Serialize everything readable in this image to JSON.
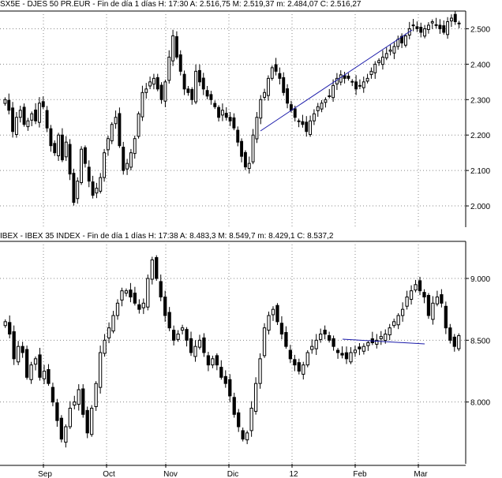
{
  "chart_data": [
    {
      "type": "candlestick",
      "title": "SX5E - DJES 50 PR.EUR - Fin de día 1 días  H: 17:30  A: 2.516,75  M: 2.519,37  m: 2.484,07  C: 2.516,27",
      "y_ticks": [
        "2.500",
        "2.400",
        "2.300",
        "2.200",
        "2.100",
        "2.000"
      ],
      "y_tick_values": [
        2500,
        2400,
        2300,
        2200,
        2100,
        2000
      ],
      "ylim": [
        1940,
        2550
      ],
      "grid": true,
      "trendline": {
        "color": "#1a1aaa",
        "from": [
          "Dic-8",
          2180
        ],
        "to": [
          "Feb-25",
          2515
        ]
      },
      "closes": [
        2300,
        2270,
        2210,
        2250,
        2270,
        2230,
        2240,
        2260,
        2240,
        2290,
        2280,
        2220,
        2170,
        2150,
        2200,
        2130,
        2180,
        2090,
        2010,
        2070,
        2160,
        2120,
        2070,
        2030,
        2050,
        2080,
        2150,
        2190,
        2230,
        2250,
        2170,
        2100,
        2120,
        2150,
        2190,
        2260,
        2320,
        2330,
        2350,
        2360,
        2330,
        2300,
        2350,
        2420,
        2480,
        2420,
        2380,
        2330,
        2320,
        2300,
        2380,
        2350,
        2330,
        2310,
        2300,
        2280,
        2250,
        2270,
        2250,
        2240,
        2220,
        2180,
        2140,
        2110,
        2120,
        2200,
        2250,
        2300,
        2320,
        2360,
        2390,
        2380,
        2360,
        2320,
        2290,
        2270,
        2250,
        2240,
        2230,
        2210,
        2240,
        2260,
        2280,
        2290,
        2300,
        2310,
        2340,
        2360,
        2370,
        2360,
        2360,
        2350,
        2330,
        2340,
        2350,
        2360,
        2380,
        2400,
        2410,
        2420,
        2430,
        2440,
        2450,
        2470,
        2460,
        2480,
        2500,
        2510,
        2500,
        2490,
        2500,
        2510,
        2520,
        2510,
        2500,
        2490,
        2520,
        2530,
        2520,
        2516
      ]
    },
    {
      "type": "candlestick",
      "title": "IBEX - IBEX 35 INDEX - Fin de día 1 días  H: 17:38  A: 8.483,3  M: 8.549,7  m: 8.429,1  C: 8.537,2",
      "y_ticks": [
        "9.000",
        "8.500",
        "8.000"
      ],
      "y_tick_values": [
        9000,
        8500,
        8000
      ],
      "ylim": [
        7500,
        9300
      ],
      "grid": true,
      "trendline": {
        "color": "#1a1aaa",
        "from": [
          "Feb-1",
          8490
        ],
        "to": [
          "Feb-28",
          8450
        ]
      },
      "x_labels": [
        "Sep",
        "Oct",
        "Nov",
        "Dic",
        "12",
        "Feb",
        "Mar"
      ],
      "closes": [
        8650,
        8550,
        8350,
        8450,
        8400,
        8200,
        8300,
        8350,
        8200,
        8250,
        8150,
        8000,
        7850,
        7700,
        7800,
        7950,
        8000,
        8100,
        7900,
        7750,
        7950,
        8150,
        8400,
        8500,
        8600,
        8700,
        8800,
        8900,
        8900,
        8850,
        8800,
        8750,
        8800,
        9000,
        9150,
        9000,
        8850,
        8700,
        8600,
        8500,
        8550,
        8600,
        8500,
        8400,
        8450,
        8500,
        8400,
        8300,
        8350,
        8300,
        8200,
        8150,
        8050,
        7900,
        7800,
        7700,
        7750,
        7950,
        8150,
        8350,
        8600,
        8700,
        8750,
        8650,
        8550,
        8450,
        8350,
        8300,
        8250,
        8300,
        8400,
        8450,
        8500,
        8550,
        8550,
        8500,
        8450,
        8400,
        8380,
        8350,
        8400,
        8420,
        8430,
        8450,
        8480,
        8480,
        8500,
        8530,
        8550,
        8600,
        8650,
        8700,
        8750,
        8850,
        8900,
        8950,
        8900,
        8850,
        8700,
        8800,
        8850,
        8800,
        8600,
        8500,
        8450,
        8537
      ]
    }
  ]
}
